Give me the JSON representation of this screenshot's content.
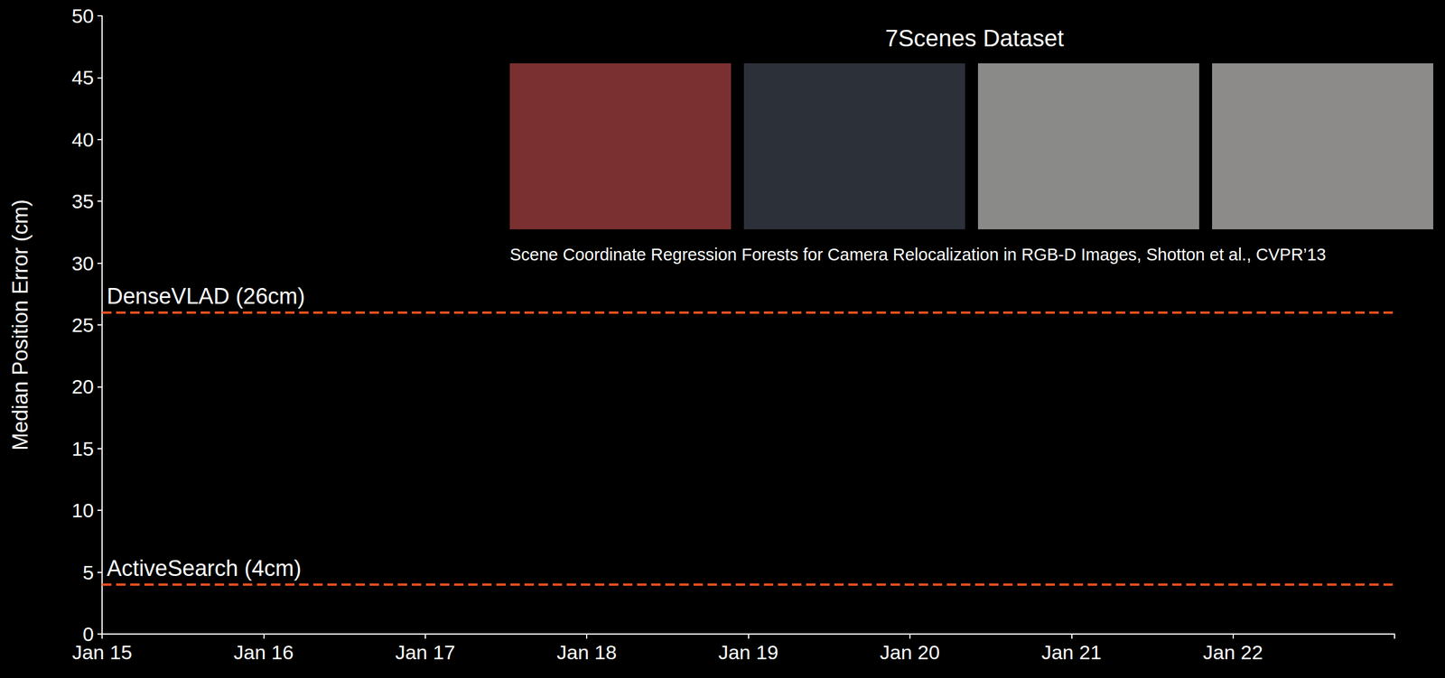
{
  "chart_data": {
    "type": "line",
    "title": "7Scenes Dataset",
    "caption": "Scene Coordinate Regression Forests for Camera Relocalization in RGB-D Images, Shotton et al., CVPR’13",
    "y_label": "Median Position Error (cm)",
    "categories": [
      "Jan 15",
      "Jan 16",
      "Jan 17",
      "Jan 18",
      "Jan 19",
      "Jan 20",
      "Jan 21",
      "Jan 22",
      null
    ],
    "series": [
      {
        "name": "DenseVLAD (26cm)",
        "color": "#f0501e",
        "line_style": "dashed",
        "values": [
          26,
          26,
          26,
          26,
          26,
          26,
          26,
          26,
          26
        ]
      },
      {
        "name": "ActiveSearch (4cm)",
        "color": "#f0501e",
        "line_style": "dashed",
        "values": [
          4,
          4,
          4,
          4,
          4,
          4,
          4,
          4,
          4
        ]
      }
    ],
    "ylim": [
      0,
      50
    ],
    "yticks": [
      0,
      5,
      10,
      15,
      20,
      25,
      30,
      35,
      40,
      45,
      50
    ],
    "grid": false
  }
}
